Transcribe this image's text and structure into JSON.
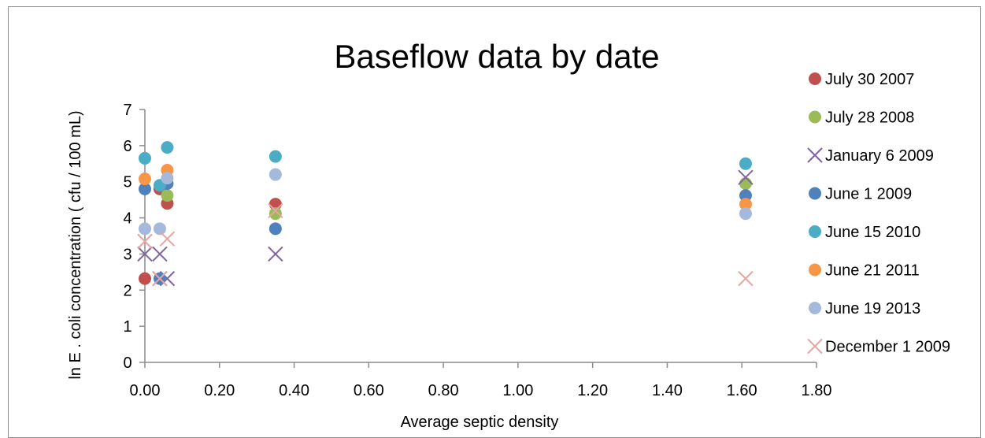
{
  "chart_data": {
    "type": "scatter",
    "title": "Baseflow data by date",
    "xlabel": "Average septic density",
    "ylabel": "ln E . coli concentration ( cfu / 100 mL)",
    "xlim": [
      0,
      1.8
    ],
    "ylim": [
      0,
      7
    ],
    "xticks": [
      "0.00",
      "0.20",
      "0.40",
      "0.60",
      "0.80",
      "1.00",
      "1.20",
      "1.40",
      "1.60",
      "1.80"
    ],
    "yticks": [
      "0",
      "1",
      "2",
      "3",
      "4",
      "5",
      "6",
      "7"
    ],
    "grid": false,
    "legend_position": "right",
    "series": [
      {
        "name": "July 30 2007",
        "marker": "circle",
        "color": "#c0504d",
        "points": [
          [
            0.0,
            2.32
          ],
          [
            0.04,
            4.8
          ],
          [
            0.06,
            4.4
          ],
          [
            0.35,
            4.38
          ]
        ]
      },
      {
        "name": "July 28 2008",
        "marker": "circle",
        "color": "#9bbb59",
        "points": [
          [
            0.06,
            4.62
          ],
          [
            0.35,
            4.12
          ],
          [
            1.61,
            4.95
          ]
        ]
      },
      {
        "name": "January 6 2009",
        "marker": "x",
        "color": "#8064a2",
        "points": [
          [
            0.0,
            3.0
          ],
          [
            0.04,
            3.0
          ],
          [
            0.04,
            2.32
          ],
          [
            0.06,
            2.32
          ],
          [
            0.35,
            3.0
          ],
          [
            1.61,
            5.12
          ]
        ]
      },
      {
        "name": "June 1 2009",
        "marker": "circle",
        "color": "#4f81bd",
        "points": [
          [
            0.0,
            4.8
          ],
          [
            0.04,
            2.32
          ],
          [
            0.06,
            4.95
          ],
          [
            0.35,
            3.7
          ],
          [
            1.61,
            4.62
          ]
        ]
      },
      {
        "name": "June 15 2010",
        "marker": "circle",
        "color": "#4bacc6",
        "points": [
          [
            0.0,
            5.65
          ],
          [
            0.04,
            4.9
          ],
          [
            0.06,
            5.95
          ],
          [
            0.35,
            5.7
          ],
          [
            1.61,
            5.5
          ]
        ]
      },
      {
        "name": "June 21 2011",
        "marker": "circle",
        "color": "#f79646",
        "points": [
          [
            0.0,
            5.08
          ],
          [
            0.06,
            5.32
          ],
          [
            1.61,
            4.38
          ]
        ]
      },
      {
        "name": "June 19 2013",
        "marker": "circle",
        "color": "#a5b9dc",
        "points": [
          [
            0.0,
            3.7
          ],
          [
            0.04,
            3.7
          ],
          [
            0.06,
            5.1
          ],
          [
            0.35,
            5.2
          ],
          [
            1.61,
            4.12
          ]
        ]
      },
      {
        "name": "December 1 2009",
        "marker": "x",
        "color": "#e6a6a3",
        "points": [
          [
            0.0,
            3.35
          ],
          [
            0.04,
            2.32
          ],
          [
            0.06,
            3.42
          ],
          [
            0.35,
            4.2
          ],
          [
            1.61,
            2.32
          ]
        ]
      }
    ]
  }
}
